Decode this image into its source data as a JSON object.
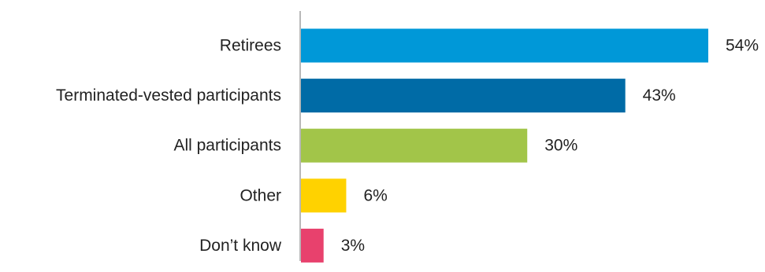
{
  "chart_data": {
    "type": "bar",
    "orientation": "horizontal",
    "categories": [
      "Retirees",
      "Terminated-vested participants",
      "All participants",
      "Other",
      "Don’t know"
    ],
    "values": [
      54,
      43,
      30,
      6,
      3
    ],
    "value_labels": [
      "54%",
      "43%",
      "30%",
      "6%",
      "3%"
    ],
    "colors": [
      "#0098D8",
      "#006BA6",
      "#A2C549",
      "#FFD200",
      "#E8416D"
    ],
    "title": "",
    "xlabel": "",
    "ylabel": "",
    "xlim": [
      0,
      54
    ],
    "grid": false,
    "legend": "none"
  }
}
